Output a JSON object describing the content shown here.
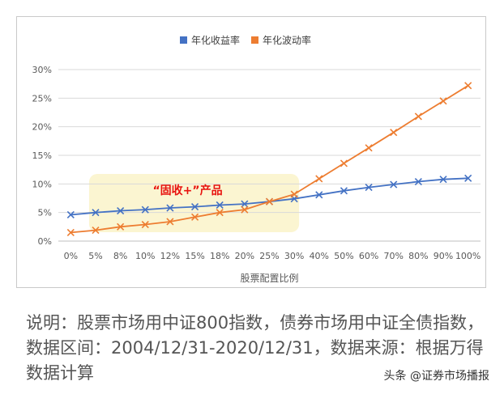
{
  "chart_data": {
    "type": "line",
    "categories": [
      "0%",
      "5%",
      "8%",
      "10%",
      "12%",
      "15%",
      "18%",
      "20%",
      "25%",
      "30%",
      "40%",
      "50%",
      "60%",
      "70%",
      "80%",
      "90%",
      "100%"
    ],
    "series": [
      {
        "name": "年化收益率",
        "color": "#4472c4",
        "marker": "x",
        "values": [
          4.6,
          5.0,
          5.3,
          5.5,
          5.8,
          6.0,
          6.3,
          6.5,
          6.9,
          7.4,
          8.1,
          8.8,
          9.4,
          9.9,
          10.4,
          10.8,
          11.0
        ]
      },
      {
        "name": "年化波动率",
        "color": "#ed7d31",
        "marker": "x",
        "values": [
          1.5,
          1.9,
          2.5,
          2.9,
          3.4,
          4.2,
          5.0,
          5.5,
          6.9,
          8.2,
          10.9,
          13.6,
          16.3,
          19.0,
          21.8,
          24.5,
          27.2
        ]
      }
    ],
    "yticks": [
      "0%",
      "5%",
      "10%",
      "15%",
      "20%",
      "25%",
      "30%"
    ],
    "ylim": [
      0,
      30
    ],
    "xlabel": "股票配置比例",
    "ylabel": "",
    "title": "",
    "legend": "top-center",
    "grid": true,
    "annotation": {
      "text": "“固收+”产品",
      "color": "#e8130f",
      "highlight_color": "#fbf4cc",
      "from_category": "5%",
      "to_category": "30%"
    }
  },
  "caption": "说明：股票市场用中证800指数，债券市场用中证全债指数，数据区间：2004/12/31-2020/12/31，数据来源：根据万得数据计算",
  "watermark": "头条 @证券市场播报"
}
